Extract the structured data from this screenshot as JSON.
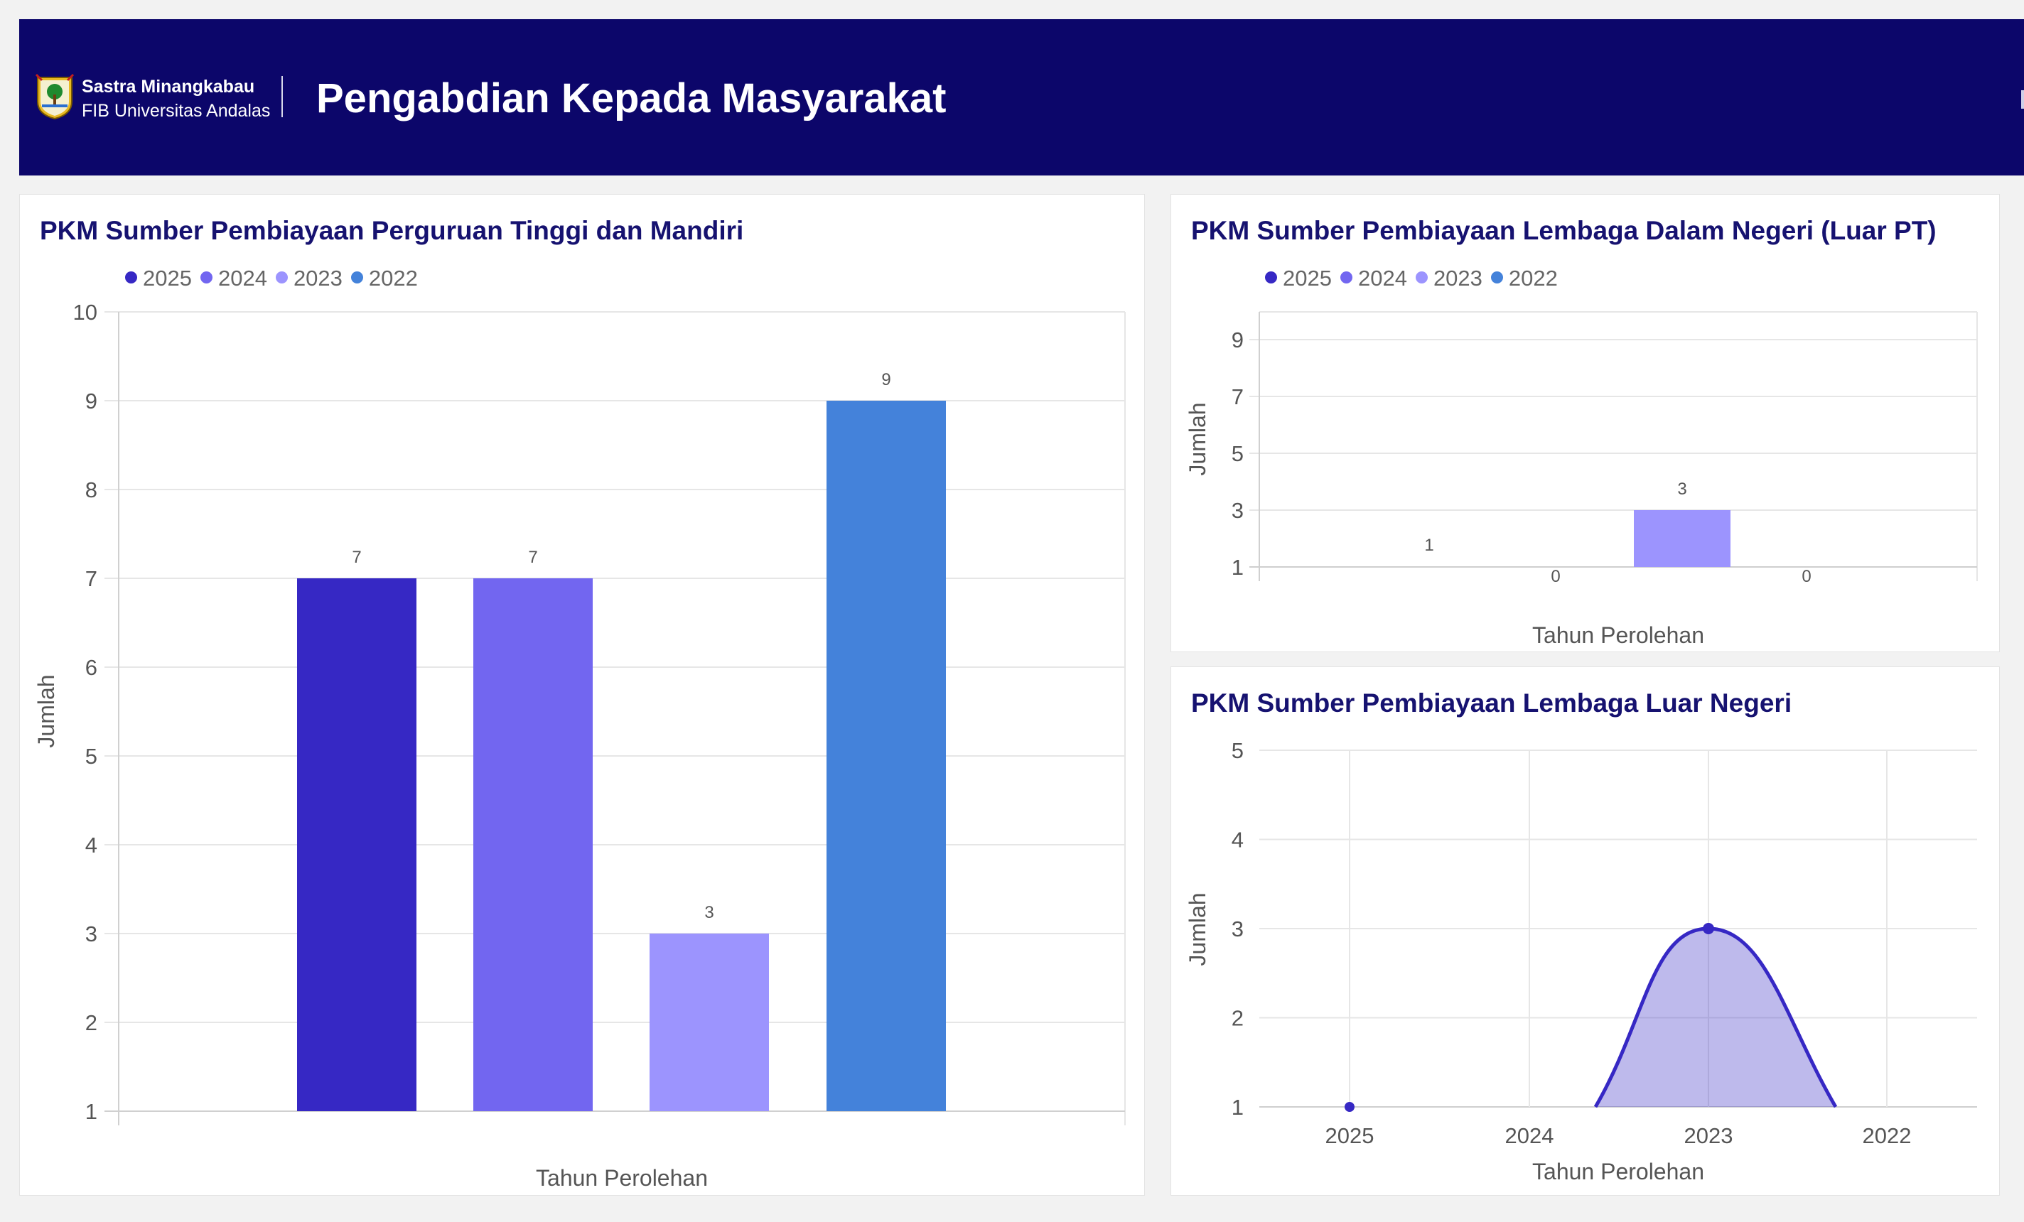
{
  "header": {
    "brand_line1": "Sastra Minangkabau",
    "brand_line2": "FIB Universitas Andalas",
    "title": "Pengabdian Kepada Masyarakat",
    "background": "#0c066a"
  },
  "colors": {
    "2025": "#3628c4",
    "2024": "#7266f0",
    "2023": "#9c94fe",
    "2022": "#4482da"
  },
  "chart_data": [
    {
      "type": "bar",
      "title": "PKM Sumber Pembiayaan Perguruan Tinggi dan Mandiri",
      "legend": [
        "2025",
        "2024",
        "2023",
        "2022"
      ],
      "categories": [
        "2025",
        "2024",
        "2023",
        "2022"
      ],
      "values": [
        7,
        7,
        3,
        9
      ],
      "data_labels": [
        "7",
        "7",
        "3",
        "9"
      ],
      "xlabel": "Tahun Perolehan",
      "ylabel": "Jumlah",
      "ylim": [
        1,
        10
      ],
      "yticks": [
        "1",
        "2",
        "3",
        "4",
        "5",
        "6",
        "7",
        "8",
        "9",
        "10"
      ],
      "grid": true
    },
    {
      "type": "bar",
      "title": "PKM Sumber Pembiayaan Lembaga Dalam Negeri (Luar PT)",
      "legend": [
        "2025",
        "2024",
        "2023",
        "2022"
      ],
      "categories": [
        "2025",
        "2024",
        "2023",
        "2022"
      ],
      "values": [
        1,
        0,
        3,
        0
      ],
      "data_labels": [
        "1",
        "0",
        "3",
        "0"
      ],
      "xlabel": "Tahun Perolehan",
      "ylabel": "Jumlah",
      "ylim": [
        1,
        10
      ],
      "yticks": [
        "1",
        "3",
        "5",
        "7",
        "9"
      ],
      "grid": true
    },
    {
      "type": "area",
      "title": "PKM Sumber Pembiayaan Lembaga Luar Negeri",
      "x": [
        "2025",
        "2024",
        "2023",
        "2022"
      ],
      "values": [
        1,
        0,
        3,
        0
      ],
      "xlabel": "Tahun Perolehan",
      "ylabel": "Jumlah",
      "ylim": [
        1,
        5
      ],
      "yticks": [
        "1",
        "2",
        "3",
        "4",
        "5"
      ],
      "grid": true
    }
  ]
}
